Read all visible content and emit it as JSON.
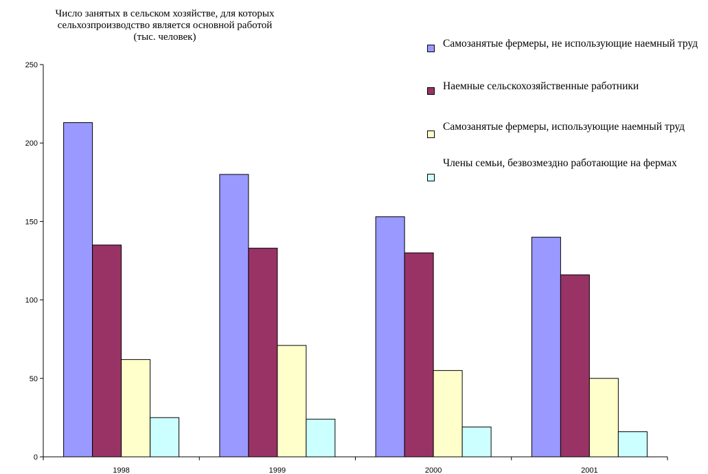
{
  "chart_data": {
    "type": "bar",
    "title_lines": [
      "Число занятых в сельском хозяйстве, для которых",
      "сельхозпроизводство является основной работой",
      "(тыс. человек)"
    ],
    "categories": [
      "1998",
      "1999",
      "2000",
      "2001"
    ],
    "series": [
      {
        "name": "Самозанятые фермеры, не использующие наемный труд",
        "color": "#9999ff",
        "values": [
          213,
          180,
          153,
          140
        ]
      },
      {
        "name": "Наемные сельскохозяйственные работники",
        "color": "#993366",
        "values": [
          135,
          133,
          130,
          116
        ]
      },
      {
        "name": "Самозанятые фермеры, использующие наемный труд",
        "color": "#ffffcc",
        "values": [
          62,
          71,
          55,
          50
        ]
      },
      {
        "name": "Члены семьи, безвозмездно работающие на фермах",
        "color": "#ccffff",
        "values": [
          25,
          24,
          19,
          16
        ]
      }
    ],
    "y_ticks": [
      "0",
      "50",
      "100",
      "150",
      "200",
      "250"
    ],
    "ylim": [
      0,
      250
    ],
    "grid": false,
    "legend_position": "top-right"
  }
}
